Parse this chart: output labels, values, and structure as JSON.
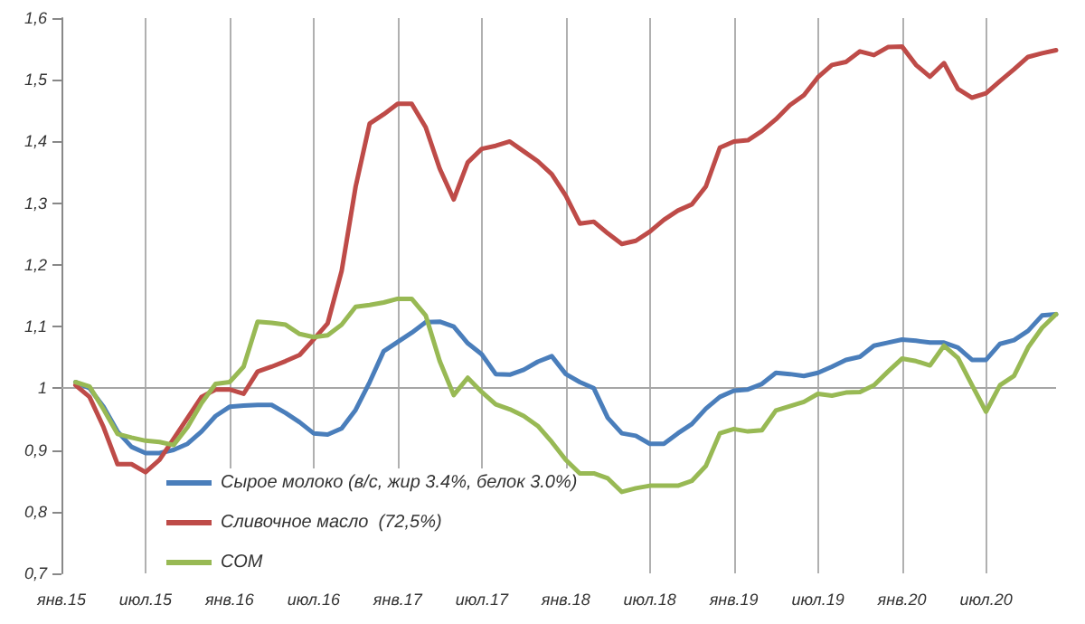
{
  "chart_data": {
    "type": "line",
    "categories": [
      "янв.15",
      null,
      null,
      null,
      null,
      null,
      "июл.15",
      null,
      null,
      null,
      null,
      null,
      "янв.16",
      null,
      null,
      null,
      null,
      null,
      "июл.16",
      null,
      null,
      null,
      null,
      null,
      "янв.17",
      null,
      null,
      null,
      null,
      null,
      "июл.17",
      null,
      null,
      null,
      null,
      null,
      "янв.18",
      null,
      null,
      null,
      null,
      null,
      "июл.18",
      null,
      null,
      null,
      null,
      null,
      "янв.19",
      null,
      null,
      null,
      null,
      null,
      "июл.19",
      null,
      null,
      null,
      null,
      null,
      "янв.20",
      null,
      null,
      null,
      null,
      null,
      "июл.20",
      null,
      null,
      null,
      null,
      null
    ],
    "series": [
      {
        "name": "Сырое молоко (в/с, жир 3.4%, белок 3.0%)",
        "color": "#4a7ebb",
        "values": [
          null,
          1.01,
          1.0,
          0.97,
          0.93,
          0.905,
          0.895,
          0.895,
          0.9,
          0.91,
          0.93,
          0.955,
          0.97,
          0.972,
          0.973,
          0.973,
          0.96,
          0.945,
          0.927,
          0.925,
          0.935,
          0.965,
          1.01,
          1.06,
          1.075,
          1.09,
          1.107,
          1.108,
          1.1,
          1.073,
          1.055,
          1.023,
          1.022,
          1.03,
          1.043,
          1.052,
          1.023,
          1.01,
          1.0,
          0.952,
          0.927,
          0.923,
          0.91,
          0.91,
          0.927,
          0.942,
          0.967,
          0.986,
          0.996,
          0.998,
          1.007,
          1.025,
          1.023,
          1.02,
          1.025,
          1.035,
          1.046,
          1.051,
          1.069,
          1.074,
          1.079,
          1.077,
          1.074,
          1.074,
          1.066,
          1.046,
          1.046,
          1.072,
          1.078,
          1.093,
          1.118,
          1.12
        ]
      },
      {
        "name": "Сливочное масло  (72,5%)",
        "color": "#be4b48",
        "values": [
          null,
          1.005,
          0.986,
          0.937,
          0.877,
          0.877,
          0.864,
          0.884,
          0.918,
          0.952,
          0.986,
          0.998,
          0.998,
          0.991,
          1.027,
          1.035,
          1.044,
          1.054,
          1.079,
          1.105,
          1.19,
          1.327,
          1.429,
          1.444,
          1.461,
          1.461,
          1.423,
          1.356,
          1.306,
          1.366,
          1.388,
          1.393,
          1.4,
          1.384,
          1.368,
          1.347,
          1.312,
          1.267,
          1.27,
          1.251,
          1.234,
          1.239,
          1.254,
          1.273,
          1.288,
          1.298,
          1.327,
          1.39,
          1.4,
          1.402,
          1.417,
          1.436,
          1.459,
          1.475,
          1.504,
          1.524,
          1.529,
          1.546,
          1.54,
          1.553,
          1.554,
          1.524,
          1.505,
          1.527,
          1.485,
          1.471,
          1.478,
          1.498,
          1.517,
          1.537,
          1.543,
          1.548
        ]
      },
      {
        "name": "СОМ",
        "color": "#98b954",
        "values": [
          null,
          1.01,
          1.003,
          0.966,
          0.926,
          0.92,
          0.915,
          0.913,
          0.908,
          0.937,
          0.976,
          1.007,
          1.01,
          1.035,
          1.108,
          1.106,
          1.103,
          1.088,
          1.083,
          1.086,
          1.103,
          1.132,
          1.135,
          1.139,
          1.145,
          1.145,
          1.118,
          1.044,
          0.989,
          1.017,
          0.994,
          0.974,
          0.966,
          0.955,
          0.939,
          0.913,
          0.884,
          0.862,
          0.862,
          0.854,
          0.832,
          0.838,
          0.842,
          0.842,
          0.842,
          0.85,
          0.874,
          0.927,
          0.934,
          0.93,
          0.932,
          0.964,
          0.971,
          0.978,
          0.991,
          0.988,
          0.993,
          0.994,
          1.005,
          1.027,
          1.048,
          1.044,
          1.037,
          1.069,
          1.049,
          1.005,
          0.962,
          1.005,
          1.02,
          1.066,
          1.098,
          1.12
        ]
      }
    ],
    "ylim": [
      0.7,
      1.6
    ],
    "yticks": [
      {
        "value": 0.7,
        "label": "0,7"
      },
      {
        "value": 0.8,
        "label": "0,8"
      },
      {
        "value": 0.9,
        "label": "0,9"
      },
      1,
      {
        "value": 1.1,
        "label": "1,1"
      },
      {
        "value": 1.2,
        "label": "1,2"
      },
      {
        "value": 1.3,
        "label": "1,3"
      },
      {
        "value": 1.4,
        "label": "1,4"
      },
      {
        "value": 1.5,
        "label": "1,5"
      },
      {
        "value": 1.6,
        "label": "1,6"
      }
    ],
    "ref_lines": [
      {
        "axis": "y",
        "value": 1,
        "color": "#a6a6a6"
      }
    ],
    "grid": "x",
    "legend": "bottom",
    "marker": "none",
    "line_style": "solid"
  }
}
